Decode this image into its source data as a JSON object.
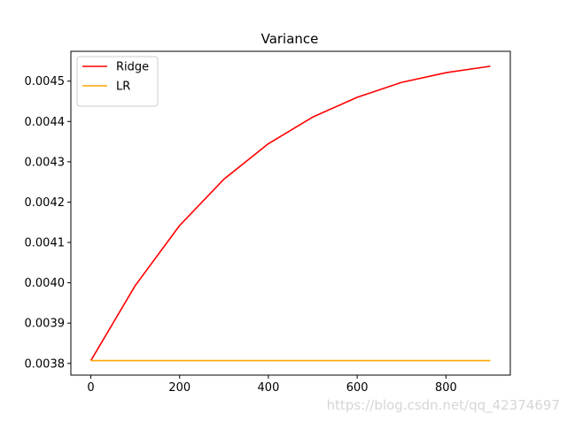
{
  "chart_data": {
    "type": "line",
    "title": "Variance",
    "xlabel": "",
    "ylabel": "",
    "x": [
      0,
      100,
      200,
      300,
      400,
      500,
      600,
      700,
      800,
      900
    ],
    "series": [
      {
        "name": "Ridge",
        "color": "#ff0000",
        "values": [
          0.003807,
          0.003993,
          0.004142,
          0.004257,
          0.004345,
          0.004411,
          0.00446,
          0.004497,
          0.004521,
          0.004537
        ]
      },
      {
        "name": "LR",
        "color": "#ffa500",
        "values": [
          0.003807,
          0.003807,
          0.003807,
          0.003807,
          0.003807,
          0.003807,
          0.003807,
          0.003807,
          0.003807,
          0.003807
        ]
      }
    ],
    "xlim": [
      -45,
      945
    ],
    "ylim": [
      0.003771,
      0.004574
    ],
    "xticks": [
      0,
      200,
      400,
      600,
      800
    ],
    "yticks": [
      0.0038,
      0.0039,
      0.004,
      0.0041,
      0.0042,
      0.0043,
      0.0044,
      0.0045
    ],
    "ytick_labels": [
      "0.0038",
      "0.0039",
      "0.0040",
      "0.0041",
      "0.0042",
      "0.0043",
      "0.0044",
      "0.0045"
    ],
    "grid": false,
    "legend_position": "top-left"
  },
  "watermark": "https://blog.csdn.net/qq_42374697"
}
